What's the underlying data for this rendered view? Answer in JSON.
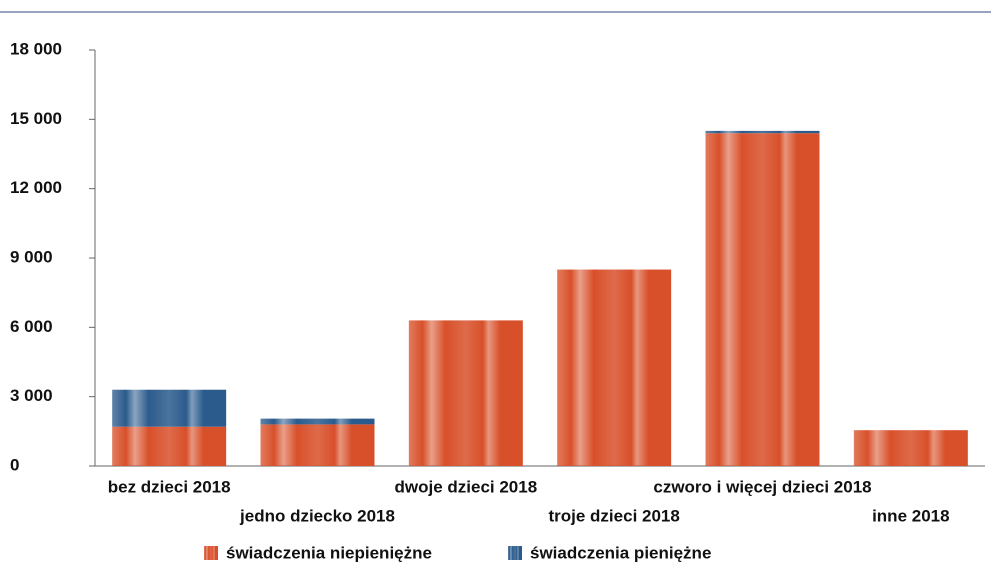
{
  "chart_data": {
    "type": "bar",
    "stacked": true,
    "categories": [
      "bez dzieci 2018",
      "jedno dziecko 2018",
      "dwoje dzieci 2018",
      "troje dzieci 2018",
      "czworo i więcej dzieci 2018",
      "inne 2018"
    ],
    "series": [
      {
        "name": "świadczenia niepieniężne",
        "color": "#d8502a",
        "values": [
          1700,
          1800,
          6300,
          8500,
          14400,
          1550
        ]
      },
      {
        "name": "świadczenia pieniężne",
        "color": "#2b5b8c",
        "values": [
          1600,
          250,
          0,
          0,
          100,
          0
        ]
      }
    ],
    "ylim": [
      0,
      18000
    ],
    "yticks": [
      0,
      {
        "value": 3000,
        "label": "3 000"
      },
      {
        "value": 6000,
        "label": "6 000"
      },
      {
        "value": 9000,
        "label": "9 000"
      },
      {
        "value": 12000,
        "label": "12 000"
      },
      {
        "value": 15000,
        "label": "15 000"
      },
      {
        "value": 18000,
        "label": "18 000"
      }
    ],
    "grid": false,
    "legend": "bottom"
  }
}
